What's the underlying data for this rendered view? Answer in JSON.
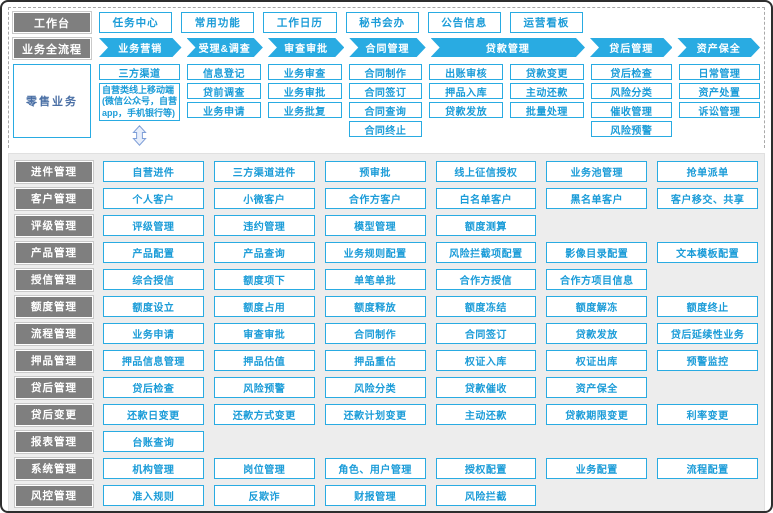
{
  "palette": {
    "accent_blue": "#29abe2",
    "text_blue": "#1b9cd8",
    "label_gray": "#7f7f7f",
    "section_bg": "#ededed"
  },
  "workbench": {
    "label": "工作台",
    "items": [
      "任务中心",
      "常用功能",
      "工作日历",
      "秘书会办",
      "公告信息",
      "运营看板"
    ]
  },
  "process": {
    "label": "业务全流程",
    "steps": [
      "业务营销",
      "受理&调查",
      "审查审批",
      "合同管理",
      "贷款管理",
      "贷后管理",
      "资产保全"
    ]
  },
  "retail": {
    "label": "零售业务",
    "channel_column": {
      "top": "三方渠道",
      "detail": "自营类线上移动端(微信公众号，自营app，手机银行等)",
      "arrow_icon": "double-vertical-arrow"
    },
    "columns": [
      {
        "items": [
          "信息登记",
          "贷前调查",
          "业务申请"
        ]
      },
      {
        "items": [
          "业务审查",
          "业务审批",
          "业务批复"
        ]
      },
      {
        "items": [
          "合同制作",
          "合同签订",
          "合同查询",
          "合同终止"
        ]
      },
      {
        "items": [
          "出账审核",
          "押品入库",
          "贷款发放"
        ]
      },
      {
        "items": [
          "贷款变更",
          "主动还款",
          "批量处理"
        ]
      },
      {
        "items": [
          "贷后检查",
          "风险分类",
          "催收管理",
          "风险预警"
        ]
      },
      {
        "items": [
          "日常管理",
          "资产处置",
          "诉讼管理"
        ]
      }
    ]
  },
  "matrix": {
    "rows": [
      {
        "label": "进件管理",
        "items": [
          "自营进件",
          "三方渠道进件",
          "预审批",
          "线上征信授权",
          "业务池管理",
          "抢单派单"
        ]
      },
      {
        "label": "客户管理",
        "items": [
          "个人客户",
          "小微客户",
          "合作方客户",
          "白名单客户",
          "黑名单客户",
          "客户移交、共享"
        ]
      },
      {
        "label": "评级管理",
        "items": [
          "评级管理",
          "违约管理",
          "模型管理",
          "额度测算"
        ]
      },
      {
        "label": "产品管理",
        "items": [
          "产品配置",
          "产品查询",
          "业务规则配置",
          "风险拦截项配置",
          "影像目录配置",
          "文本模板配置"
        ]
      },
      {
        "label": "授信管理",
        "items": [
          "综合授信",
          "额度项下",
          "单笔单批",
          "合作方授信",
          "合作方项目信息"
        ]
      },
      {
        "label": "额度管理",
        "items": [
          "额度设立",
          "额度占用",
          "额度释放",
          "额度冻结",
          "额度解冻",
          "额度终止"
        ]
      },
      {
        "label": "流程管理",
        "items": [
          "业务申请",
          "审查审批",
          "合同制作",
          "合同签订",
          "贷款发放",
          "贷后延续性业务"
        ]
      },
      {
        "label": "押品管理",
        "items": [
          "押品信息管理",
          "押品估值",
          "押品重估",
          "权证入库",
          "权证出库",
          "预警监控"
        ]
      },
      {
        "label": "贷后管理",
        "items": [
          "贷后检查",
          "风险预警",
          "风险分类",
          "贷款催收",
          "资产保全"
        ]
      },
      {
        "label": "贷后变更",
        "items": [
          "还款日变更",
          "还款方式变更",
          "还款计划变更",
          "主动还款",
          "贷款期限变更",
          "利率变更"
        ]
      },
      {
        "label": "报表管理",
        "items": [
          "台账查询"
        ]
      },
      {
        "label": "系统管理",
        "items": [
          "机构管理",
          "岗位管理",
          "角色、用户管理",
          "授权配置",
          "业务配置",
          "流程配置"
        ]
      },
      {
        "label": "风控管理",
        "items": [
          "准入规则",
          "反欺诈",
          "财报管理",
          "风险拦截"
        ]
      }
    ]
  }
}
